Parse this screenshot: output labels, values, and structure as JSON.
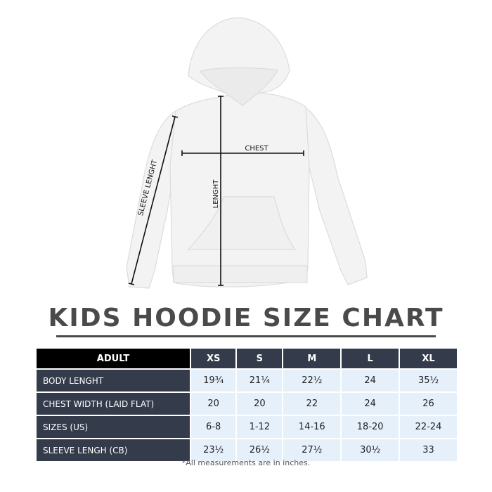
{
  "diagram": {
    "labels": {
      "chest": "CHEST",
      "length": "LENGHT",
      "sleeve": "SLEEVE LENGHT"
    }
  },
  "title": "KIDS HOODIE SIZE CHART",
  "table": {
    "header": [
      "ADULT",
      "XS",
      "S",
      "M",
      "L",
      "XL"
    ],
    "rows": [
      {
        "label": "BODY LENGHT",
        "values": [
          "19¾",
          "21¼",
          "22½",
          "24",
          "35½"
        ]
      },
      {
        "label": "CHEST WIDTH (LAID FLAT)",
        "values": [
          "20",
          "20",
          "22",
          "24",
          "26"
        ]
      },
      {
        "label": "SIZES (US)",
        "values": [
          "6-8",
          "1-12",
          "14-16",
          "18-20",
          "22-24"
        ]
      },
      {
        "label": "SLEEVE LENGH (CB)",
        "values": [
          "23½",
          "26½",
          "27½",
          "30½",
          "33"
        ]
      }
    ]
  },
  "note": "*All measurements are in inches.",
  "colors": {
    "header": "#343b4b",
    "first_header": "#000000",
    "cell": "#e6f0fb",
    "title": "#4a4a4a"
  }
}
